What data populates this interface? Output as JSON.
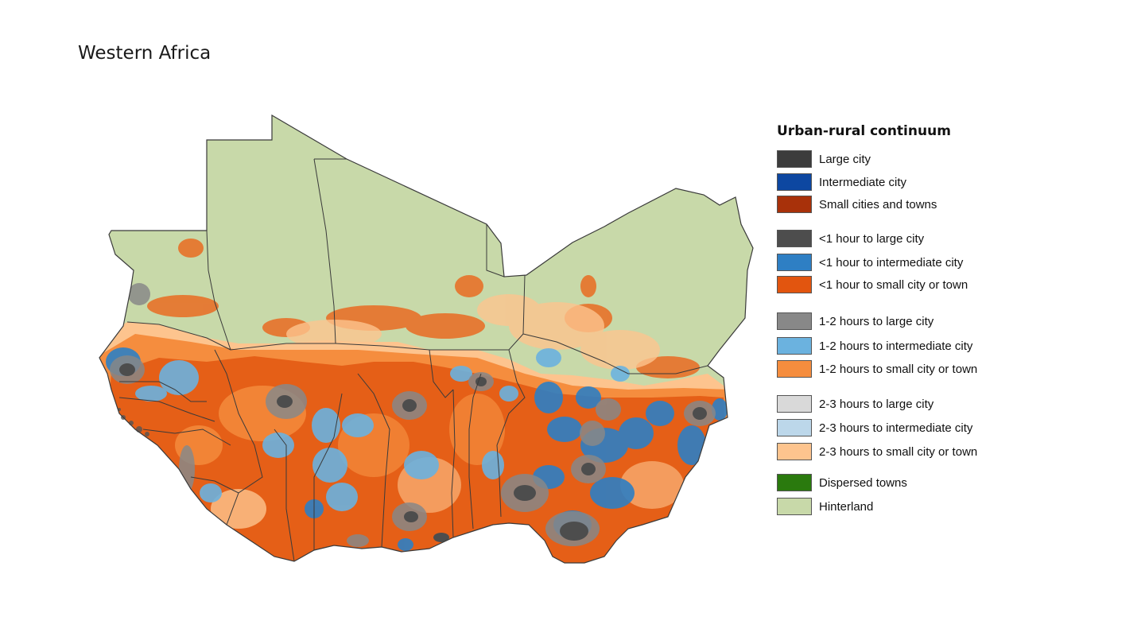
{
  "map": {
    "title": "Western Africa"
  },
  "legend": {
    "title": "Urban-rural continuum",
    "items": [
      {
        "label": "Large city",
        "color": "#3c3c3c"
      },
      {
        "label": "Intermediate city",
        "color": "#0d47a1"
      },
      {
        "label": "Small cities and towns",
        "color": "#a8310a"
      },
      {
        "label": "<1 hour to large city",
        "color": "#4d4d4d"
      },
      {
        "label": "<1 hour to intermediate city",
        "color": "#2e7fc4"
      },
      {
        "label": "<1 hour to small city or town",
        "color": "#e2550f"
      },
      {
        "label": "1-2 hours to large city",
        "color": "#888888"
      },
      {
        "label": "1-2 hours to intermediate city",
        "color": "#6bb2df"
      },
      {
        "label": "1-2 hours to small city or town",
        "color": "#f58d3e"
      },
      {
        "label": "2-3 hours to large city",
        "color": "#d9d9d9"
      },
      {
        "label": "2-3 hours to intermediate city",
        "color": "#bcd7ea"
      },
      {
        "label": "2-3 hours to small city or town",
        "color": "#fdc48e"
      },
      {
        "label": "Dispersed towns",
        "color": "#2a7a0e"
      },
      {
        "label": "Hinterland",
        "color": "#c8d9a9"
      }
    ]
  }
}
